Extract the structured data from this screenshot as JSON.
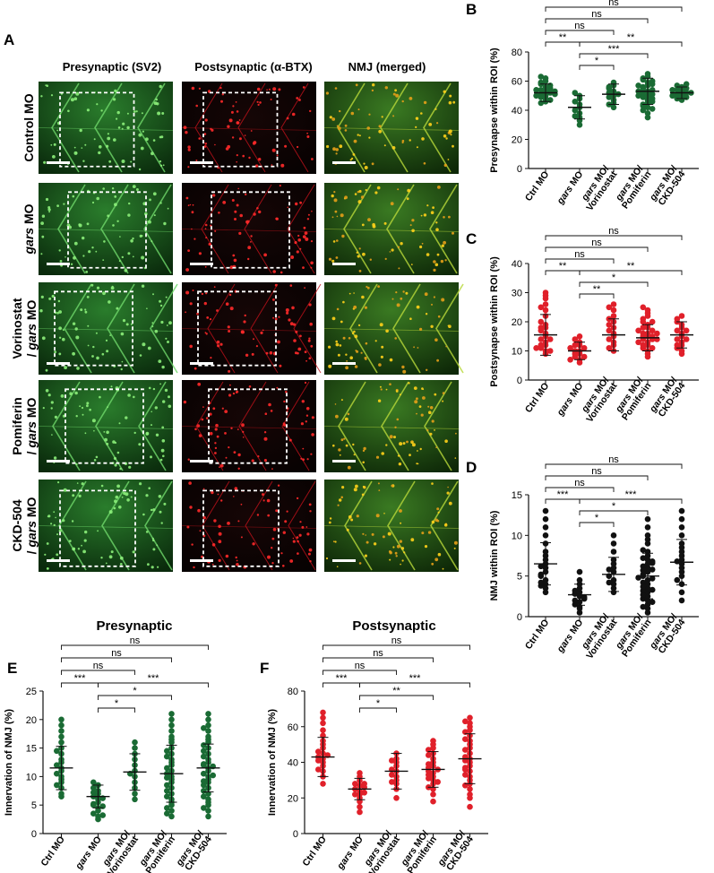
{
  "figure": {
    "panel_letters": [
      "A",
      "B",
      "C",
      "D",
      "E",
      "F"
    ],
    "microscopy": {
      "column_headers": [
        "Presynaptic (SV2)",
        "Postsynaptic (α-BTX)",
        "NMJ (merged)"
      ],
      "row_labels": [
        [
          "Control MO"
        ],
        [
          "gars MO"
        ],
        [
          "Vorinostat",
          "/ gars MO"
        ],
        [
          "Pomiferin",
          "/ gars MO"
        ],
        [
          "CKD-504",
          "/ gars MO"
        ]
      ],
      "channel_colors": {
        "presynaptic": "#1f9a2c",
        "postsynaptic": "#d8141b",
        "merged": "#a8c42a"
      }
    },
    "group_labels": [
      [
        "Ctrl MO"
      ],
      [
        "gars MO"
      ],
      [
        "gars MO/",
        "Vorinostat"
      ],
      [
        "gars MO/",
        "Pomiferin"
      ],
      [
        "gars MO/",
        "CKD-504"
      ]
    ]
  },
  "chart_data": [
    {
      "panel": "B",
      "type": "scatter",
      "title": "",
      "ylabel": "Presynapse within ROI (%)",
      "ylim": [
        0,
        80
      ],
      "yticks": [
        0,
        20,
        40,
        60,
        80
      ],
      "color": "#1a6b34",
      "means": [
        52,
        42,
        51,
        53,
        52
      ],
      "sds": [
        6,
        8,
        7,
        9,
        4
      ],
      "points": [
        [
          46,
          48,
          50,
          51,
          52,
          53,
          54,
          55,
          56,
          58,
          60,
          62,
          45,
          49,
          57,
          63,
          47,
          59,
          50,
          54,
          53,
          51
        ],
        [
          30,
          33,
          35,
          38,
          40,
          42,
          44,
          46,
          48,
          50,
          52,
          36
        ],
        [
          42,
          45,
          47,
          49,
          50,
          52,
          53,
          55,
          57,
          59,
          44,
          56,
          51
        ],
        [
          35,
          38,
          40,
          42,
          45,
          47,
          49,
          50,
          52,
          53,
          55,
          57,
          59,
          61,
          63,
          65,
          48,
          44,
          56,
          51,
          54,
          60,
          46,
          58,
          43,
          62,
          50,
          53,
          41,
          57
        ],
        [
          47,
          48,
          49,
          50,
          51,
          52,
          53,
          54,
          55,
          56,
          57,
          58,
          50,
          52,
          54
        ]
      ],
      "brackets": [
        {
          "from": 0,
          "to": 4,
          "label": "ns",
          "level": 0
        },
        {
          "from": 0,
          "to": 3,
          "label": "ns",
          "level": 1
        },
        {
          "from": 0,
          "to": 2,
          "label": "ns",
          "level": 2
        },
        {
          "from": 0,
          "to": 1,
          "label": "**",
          "level": 3
        },
        {
          "from": 1,
          "to": 4,
          "label": "**",
          "level": 3
        },
        {
          "from": 1,
          "to": 3,
          "label": "***",
          "level": 4
        },
        {
          "from": 1,
          "to": 2,
          "label": "*",
          "level": 5
        }
      ]
    },
    {
      "panel": "C",
      "type": "scatter",
      "title": "",
      "ylabel": "Postsynapse within ROI (%)",
      "ylim": [
        0,
        40
      ],
      "yticks": [
        0,
        10,
        20,
        30,
        40
      ],
      "color": "#e0202a",
      "means": [
        15.5,
        10,
        15.5,
        14.5,
        15.5
      ],
      "sds": [
        7,
        3,
        5.5,
        4.5,
        4.5
      ],
      "points": [
        [
          9,
          10,
          11,
          12,
          13,
          14,
          15,
          16,
          17,
          18,
          19,
          20,
          22,
          24,
          26,
          28,
          29,
          30,
          10,
          12,
          14,
          18,
          25,
          11
        ],
        [
          6,
          7,
          8,
          9,
          10,
          10,
          11,
          12,
          13,
          14,
          15,
          8,
          9,
          11,
          12,
          7
        ],
        [
          10,
          12,
          13,
          14,
          15,
          16,
          17,
          18,
          20,
          22,
          24,
          25,
          26,
          11,
          19,
          21
        ],
        [
          8,
          10,
          11,
          12,
          13,
          14,
          14,
          15,
          15,
          16,
          16,
          17,
          18,
          19,
          20,
          22,
          24,
          25,
          12,
          13,
          17,
          21,
          11,
          23,
          9,
          18,
          14,
          16,
          20,
          15
        ],
        [
          9,
          10,
          12,
          13,
          14,
          15,
          16,
          17,
          18,
          19,
          20,
          22,
          11,
          21,
          14,
          17,
          12
        ]
      ],
      "brackets": [
        {
          "from": 0,
          "to": 4,
          "label": "ns",
          "level": 0
        },
        {
          "from": 0,
          "to": 3,
          "label": "ns",
          "level": 1
        },
        {
          "from": 0,
          "to": 2,
          "label": "ns",
          "level": 2
        },
        {
          "from": 0,
          "to": 1,
          "label": "**",
          "level": 3
        },
        {
          "from": 1,
          "to": 4,
          "label": "**",
          "level": 3
        },
        {
          "from": 1,
          "to": 3,
          "label": "*",
          "level": 4
        },
        {
          "from": 1,
          "to": 2,
          "label": "**",
          "level": 5
        }
      ]
    },
    {
      "panel": "D",
      "type": "scatter",
      "title": "",
      "ylabel": "NMJ within ROI (%)",
      "ylim": [
        0,
        15
      ],
      "yticks": [
        0,
        5,
        10,
        15
      ],
      "color": "#111111",
      "means": [
        6.5,
        2.7,
        5.2,
        5,
        6.7
      ],
      "sds": [
        2.6,
        1.3,
        2.1,
        2.8,
        2.8
      ],
      "points": [
        [
          3,
          3.5,
          4,
          4.5,
          5,
          5.5,
          6,
          6.5,
          7,
          8,
          9,
          10,
          11,
          12,
          13,
          4.2,
          5.2,
          6.2,
          7.5,
          3.8
        ],
        [
          0.5,
          1,
          1.2,
          1.5,
          1.8,
          2,
          2.2,
          2.5,
          2.8,
          3,
          3.2,
          3.5,
          4,
          4.5,
          5.5,
          2.4
        ],
        [
          3,
          3.5,
          4,
          4.5,
          5,
          5.5,
          6,
          6.5,
          7,
          8,
          9,
          10,
          4.2,
          5.8
        ],
        [
          0.5,
          1,
          1.5,
          2,
          2.5,
          3,
          3.5,
          4,
          4.5,
          5,
          5.5,
          6,
          6.5,
          7,
          7.5,
          8,
          9,
          10,
          11,
          12,
          1.2,
          2.2,
          3.2,
          4.2,
          5.2,
          6.2,
          7.2,
          8.2,
          2.7,
          3.7,
          4.7,
          5.7,
          6.8,
          1.8,
          4.8,
          5.8,
          3.3,
          6.6,
          9.5
        ],
        [
          2,
          3,
          4,
          5,
          5.5,
          6,
          6.5,
          7,
          7.5,
          8,
          9,
          10,
          11,
          12,
          13,
          4.5,
          6.8,
          8.5
        ]
      ],
      "brackets": [
        {
          "from": 0,
          "to": 4,
          "label": "ns",
          "level": 0
        },
        {
          "from": 0,
          "to": 3,
          "label": "ns",
          "level": 1
        },
        {
          "from": 0,
          "to": 2,
          "label": "ns",
          "level": 2
        },
        {
          "from": 0,
          "to": 1,
          "label": "***",
          "level": 3
        },
        {
          "from": 1,
          "to": 4,
          "label": "***",
          "level": 3
        },
        {
          "from": 1,
          "to": 3,
          "label": "*",
          "level": 4
        },
        {
          "from": 1,
          "to": 2,
          "label": "*",
          "level": 5
        }
      ]
    },
    {
      "panel": "E",
      "type": "scatter",
      "title": "Presynaptic",
      "ylabel": "Innervation of NMJ (%)",
      "ylim": [
        0,
        25
      ],
      "yticks": [
        0,
        5,
        10,
        15,
        20,
        25
      ],
      "color": "#1a6b34",
      "means": [
        11.5,
        6.5,
        10.8,
        10.5,
        11.5
      ],
      "sds": [
        3.8,
        2,
        3.2,
        5,
        4.2
      ],
      "points": [
        [
          6.5,
          7,
          8,
          9,
          10,
          11,
          11.5,
          12,
          13,
          14,
          15,
          16,
          17,
          18,
          19,
          20,
          8.5,
          10.5,
          12.5,
          14.5,
          9.5
        ],
        [
          2.5,
          3,
          3.5,
          4,
          4.5,
          5,
          5.5,
          6,
          6.5,
          7,
          7.5,
          8,
          8.5,
          9,
          3.2,
          4.8,
          6.2,
          7.2,
          5.2
        ],
        [
          6,
          7,
          8,
          9,
          10,
          11,
          12,
          13,
          14,
          15,
          16,
          10.5
        ],
        [
          3,
          4,
          5,
          6,
          7,
          8,
          9,
          10,
          11,
          12,
          13,
          14,
          15,
          16,
          17,
          18,
          19,
          20,
          21,
          5.5,
          7.5,
          9.5,
          11.5,
          13.5,
          4.5,
          6.5,
          8.5,
          10.5,
          12.5,
          14.5,
          16.5,
          3.5,
          9.8
        ],
        [
          3,
          4,
          5,
          6,
          7,
          8,
          9,
          10,
          11,
          11.5,
          12,
          13,
          14,
          15,
          16,
          17,
          18,
          19,
          20,
          21,
          7.5,
          9.5,
          10.5,
          12.5,
          14.5,
          5.5,
          8.5,
          11.8,
          13.5,
          15.5,
          6.5,
          16.5,
          18.5,
          4.5,
          9.2,
          12.2,
          10.2
        ]
      ],
      "brackets": [
        {
          "from": 0,
          "to": 4,
          "label": "ns",
          "level": 0
        },
        {
          "from": 0,
          "to": 3,
          "label": "ns",
          "level": 1
        },
        {
          "from": 0,
          "to": 2,
          "label": "ns",
          "level": 2
        },
        {
          "from": 0,
          "to": 1,
          "label": "***",
          "level": 3
        },
        {
          "from": 1,
          "to": 4,
          "label": "***",
          "level": 3
        },
        {
          "from": 1,
          "to": 3,
          "label": "*",
          "level": 4
        },
        {
          "from": 1,
          "to": 2,
          "label": "*",
          "level": 5
        }
      ]
    },
    {
      "panel": "F",
      "type": "scatter",
      "title": "Postsynaptic",
      "ylabel": "Innervation of NMJ (%)",
      "ylim": [
        0,
        80
      ],
      "yticks": [
        0,
        20,
        40,
        60,
        80
      ],
      "color": "#e0202a",
      "means": [
        43,
        25,
        35,
        36,
        42
      ],
      "sds": [
        11,
        6,
        10,
        10,
        14
      ],
      "points": [
        [
          28,
          32,
          35,
          38,
          40,
          42,
          43,
          44,
          45,
          48,
          50,
          52,
          55,
          58,
          62,
          65,
          68,
          36,
          46,
          41
        ],
        [
          12,
          15,
          18,
          20,
          22,
          24,
          25,
          26,
          27,
          28,
          30,
          32,
          34,
          22,
          28,
          23
        ],
        [
          20,
          25,
          28,
          30,
          32,
          35,
          36,
          38,
          40,
          42,
          45,
          33,
          29,
          41
        ],
        [
          18,
          22,
          25,
          28,
          30,
          32,
          34,
          35,
          36,
          38,
          40,
          42,
          45,
          48,
          50,
          52,
          26,
          31,
          37,
          44,
          33,
          39,
          29,
          47
        ],
        [
          15,
          20,
          25,
          28,
          30,
          32,
          35,
          38,
          40,
          42,
          45,
          48,
          50,
          55,
          58,
          60,
          62,
          65,
          22,
          33,
          37,
          43,
          47,
          52,
          57,
          27,
          41,
          53,
          36,
          63
        ]
      ],
      "brackets": [
        {
          "from": 0,
          "to": 4,
          "label": "ns",
          "level": 0
        },
        {
          "from": 0,
          "to": 3,
          "label": "ns",
          "level": 1
        },
        {
          "from": 0,
          "to": 2,
          "label": "ns",
          "level": 2
        },
        {
          "from": 0,
          "to": 1,
          "label": "***",
          "level": 3
        },
        {
          "from": 1,
          "to": 4,
          "label": "***",
          "level": 3
        },
        {
          "from": 1,
          "to": 3,
          "label": "**",
          "level": 4
        },
        {
          "from": 1,
          "to": 2,
          "label": "*",
          "level": 5
        }
      ]
    }
  ]
}
